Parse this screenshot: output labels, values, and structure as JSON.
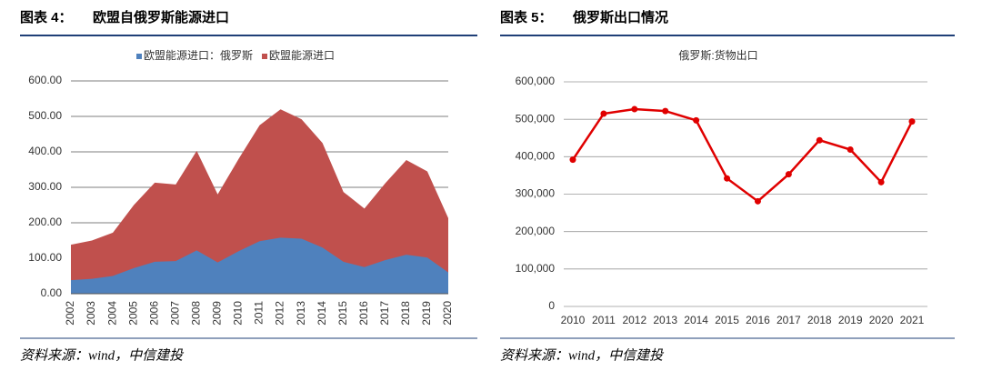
{
  "chart_data": [
    {
      "type": "area",
      "figure_label": "图表 4：",
      "heading": "欧盟自俄罗斯能源进口",
      "source": "资料来源：wind，中信建投",
      "categories": [
        "2002",
        "2003",
        "2004",
        "2005",
        "2006",
        "2007",
        "2008",
        "2009",
        "2010",
        "2011",
        "2012",
        "2013",
        "2014",
        "2015",
        "2016",
        "2017",
        "2018",
        "2019",
        "2020"
      ],
      "series": [
        {
          "name": "欧盟能源进口：俄罗斯",
          "color": "#4f81bd",
          "values": [
            38,
            42,
            50,
            72,
            90,
            92,
            122,
            88,
            120,
            148,
            158,
            155,
            130,
            90,
            75,
            95,
            110,
            102,
            60
          ]
        },
        {
          "name": "欧盟能源进口",
          "color": "#c0504d",
          "values": [
            138,
            150,
            172,
            250,
            313,
            308,
            403,
            280,
            380,
            475,
            520,
            492,
            425,
            287,
            240,
            312,
            377,
            345,
            213
          ]
        }
      ],
      "ylim": [
        0,
        600
      ],
      "yticks": [
        {
          "value": 0,
          "label": "0.00"
        },
        {
          "value": 100,
          "label": "100.00"
        },
        {
          "value": 200,
          "label": "200.00"
        },
        {
          "value": 300,
          "label": "300.00"
        },
        {
          "value": 400,
          "label": "400.00"
        },
        {
          "value": 500,
          "label": "500.00"
        },
        {
          "value": 600,
          "label": "600.00"
        }
      ],
      "grid": true,
      "legend": "top"
    },
    {
      "type": "line",
      "figure_label": "图表 5：",
      "heading": "俄罗斯出口情况",
      "source": "资料来源：wind，中信建投",
      "categories": [
        "2010",
        "2011",
        "2012",
        "2013",
        "2014",
        "2015",
        "2016",
        "2017",
        "2018",
        "2019",
        "2020",
        "2021"
      ],
      "series": [
        {
          "name": "俄罗斯:货物出口",
          "color": "#e00000",
          "values": [
            392000,
            515000,
            527000,
            522000,
            497000,
            342000,
            281000,
            353000,
            444000,
            419000,
            332000,
            494000
          ]
        }
      ],
      "ylim": [
        0,
        600000
      ],
      "yticks": [
        {
          "value": 0,
          "label": "0"
        },
        {
          "value": 100000,
          "label": "100,000"
        },
        {
          "value": 200000,
          "label": "200,000"
        },
        {
          "value": 300000,
          "label": "300,000"
        },
        {
          "value": 400000,
          "label": "400,000"
        },
        {
          "value": 500000,
          "label": "500,000"
        },
        {
          "value": 600000,
          "label": "600,000"
        }
      ],
      "grid": true,
      "legend": "top"
    }
  ]
}
